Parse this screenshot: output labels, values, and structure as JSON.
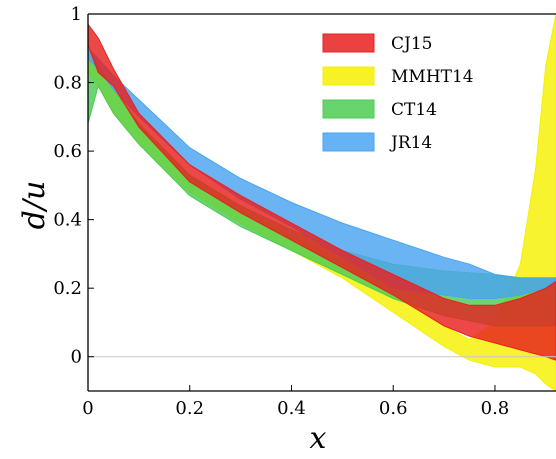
{
  "chart_data": {
    "type": "area",
    "xlabel": "x",
    "ylabel": "d/u",
    "xlim": [
      0,
      0.92
    ],
    "ylim": [
      -0.1,
      1.0
    ],
    "x_ticks": [
      0,
      0.2,
      0.4,
      0.6,
      0.8
    ],
    "x_tick_labels": [
      "0",
      "0.2",
      "0.4",
      "0.6",
      "0.8"
    ],
    "y_ticks": [
      0,
      0.2,
      0.4,
      0.6,
      0.8,
      1.0
    ],
    "y_tick_labels": [
      "0",
      "0.2",
      "0.4",
      "0.6",
      "0.8",
      "1"
    ],
    "reference_line_y": 0,
    "legend_position": "top-right",
    "series": [
      {
        "name": "MMHT14",
        "color": "#f5f000",
        "x": [
          0.0,
          0.02,
          0.05,
          0.1,
          0.2,
          0.3,
          0.4,
          0.5,
          0.6,
          0.7,
          0.75,
          0.8,
          0.85,
          0.88,
          0.9,
          0.92
        ],
        "lower": [
          0.83,
          0.79,
          0.71,
          0.62,
          0.48,
          0.39,
          0.31,
          0.23,
          0.13,
          0.03,
          -0.01,
          -0.03,
          -0.03,
          -0.05,
          -0.08,
          -0.1
        ],
        "upper": [
          0.9,
          0.86,
          0.78,
          0.68,
          0.53,
          0.43,
          0.35,
          0.28,
          0.19,
          0.09,
          0.05,
          0.1,
          0.27,
          0.55,
          0.85,
          1.0
        ]
      },
      {
        "name": "CT14",
        "color": "#4ccc54",
        "x": [
          0.0,
          0.02,
          0.05,
          0.1,
          0.2,
          0.3,
          0.4,
          0.5,
          0.6,
          0.7,
          0.8,
          0.85,
          0.9,
          0.92
        ],
        "lower": [
          0.68,
          0.79,
          0.71,
          0.62,
          0.47,
          0.38,
          0.31,
          0.24,
          0.17,
          0.12,
          0.09,
          0.09,
          0.09,
          0.09
        ],
        "upper": [
          0.9,
          0.85,
          0.78,
          0.68,
          0.53,
          0.44,
          0.37,
          0.31,
          0.27,
          0.25,
          0.24,
          0.23,
          0.23,
          0.23
        ]
      },
      {
        "name": "JR14",
        "color": "#4aa4f2",
        "x": [
          0.0,
          0.02,
          0.05,
          0.1,
          0.2,
          0.3,
          0.4,
          0.5,
          0.6,
          0.7,
          0.75,
          0.8,
          0.85,
          0.9,
          0.92
        ],
        "lower": [
          0.87,
          0.84,
          0.78,
          0.7,
          0.56,
          0.46,
          0.38,
          0.29,
          0.2,
          0.18,
          0.17,
          0.17,
          0.18,
          0.2,
          0.21
        ],
        "upper": [
          0.9,
          0.87,
          0.82,
          0.75,
          0.61,
          0.52,
          0.45,
          0.39,
          0.34,
          0.29,
          0.27,
          0.24,
          0.23,
          0.23,
          0.23
        ]
      },
      {
        "name": "CJ15",
        "color": "#e82020",
        "x": [
          0.0,
          0.02,
          0.05,
          0.1,
          0.2,
          0.3,
          0.4,
          0.5,
          0.6,
          0.7,
          0.75,
          0.8,
          0.85,
          0.9,
          0.92
        ],
        "lower": [
          0.91,
          0.83,
          0.79,
          0.67,
          0.51,
          0.42,
          0.34,
          0.26,
          0.18,
          0.09,
          0.06,
          0.04,
          0.02,
          0.0,
          -0.01
        ],
        "upper": [
          0.97,
          0.93,
          0.84,
          0.71,
          0.56,
          0.47,
          0.39,
          0.31,
          0.24,
          0.17,
          0.15,
          0.15,
          0.17,
          0.2,
          0.22
        ]
      }
    ],
    "legend": [
      "CJ15",
      "MMHT14",
      "CT14",
      "JR14"
    ]
  }
}
